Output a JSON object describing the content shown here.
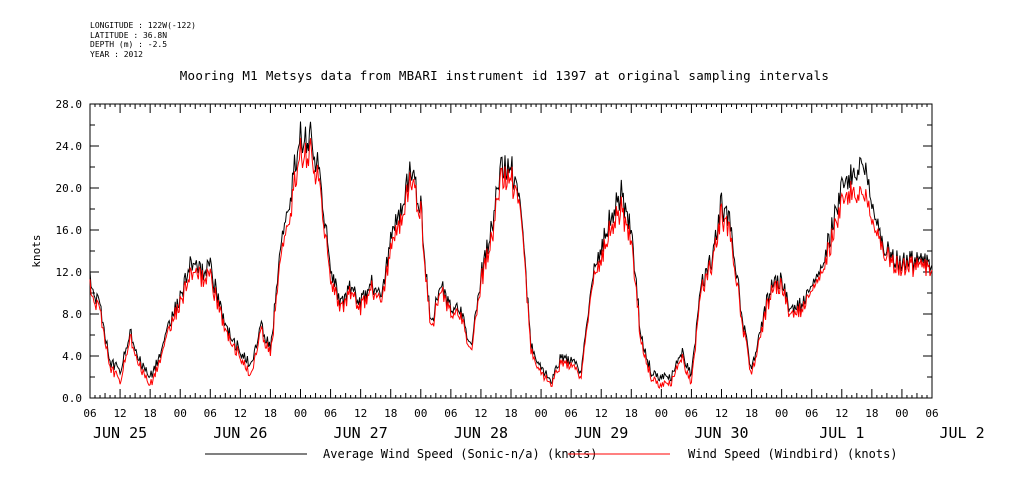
{
  "header": {
    "longitude": "LONGITUDE : 122W(-122)",
    "latitude": "LATITUDE : 36.8N",
    "depth": "DEPTH (m) : -2.5",
    "year": "YEAR : 2012",
    "title": "Mooring M1 Metsys data from MBARI instrument id 1397 at original sampling intervals"
  },
  "chart_data": {
    "type": "line",
    "title": "Mooring M1 Metsys data from MBARI instrument id 1397 at original sampling intervals",
    "ylabel": "knots",
    "xlabel": "",
    "ylim": [
      0,
      28
    ],
    "y_ticks": [
      "0.0",
      "4.0",
      "8.0",
      "12.0",
      "16.0",
      "20.0",
      "24.0",
      "28.0"
    ],
    "x_range_hours": [
      "2012-06-25 06:00",
      "2012-07-02 06:00"
    ],
    "hour_tick_labels": [
      "06",
      "12",
      "18",
      "00",
      "06",
      "12",
      "18",
      "00",
      "06",
      "12",
      "18",
      "00",
      "06",
      "12",
      "18",
      "00",
      "06",
      "12",
      "18",
      "00",
      "06",
      "12",
      "18",
      "00",
      "06",
      "12",
      "18",
      "00",
      "06"
    ],
    "day_labels": [
      "JUN 25",
      "JUN 26",
      "JUN 27",
      "JUN 28",
      "JUN 29",
      "JUN 30",
      "JUL  1",
      "JUL  2"
    ],
    "legend_position": "bottom",
    "series": [
      {
        "name": "Average Wind Speed (Sonic-n/a) (knots)",
        "color": "#000000",
        "x_hours_since_jun25_06": [
          0,
          2,
          4,
          6,
          8,
          10,
          12,
          14,
          16,
          18,
          20,
          22,
          24,
          26,
          28,
          30,
          32,
          34,
          36,
          38,
          40,
          42,
          44,
          46,
          48,
          50,
          52,
          54,
          56,
          58,
          60,
          62,
          64,
          66,
          68,
          70,
          72,
          74,
          76,
          78,
          80,
          82,
          84,
          86,
          88,
          90,
          92,
          94,
          96,
          98,
          100,
          102,
          104,
          106,
          108,
          110,
          112,
          114,
          116,
          118,
          120,
          122,
          124,
          126,
          128,
          130,
          132,
          134,
          136,
          138,
          140,
          142,
          144,
          146,
          148,
          150,
          152,
          154,
          156,
          158,
          160,
          162,
          164,
          166,
          168
        ],
        "values": [
          11.8,
          8.5,
          3.5,
          2.5,
          6.5,
          3.5,
          2.0,
          4.0,
          7.5,
          9.5,
          12.5,
          12.0,
          12.5,
          8.5,
          6.0,
          4.5,
          3.0,
          7.0,
          4.5,
          14.0,
          19.5,
          25.0,
          25.0,
          21.0,
          12.0,
          9.0,
          10.5,
          9.0,
          11.0,
          9.5,
          15.0,
          18.0,
          22.0,
          18.0,
          7.0,
          10.5,
          9.0,
          8.0,
          5.0,
          11.5,
          16.0,
          21.5,
          22.0,
          18.0,
          5.0,
          3.0,
          1.5,
          4.0,
          3.5,
          2.5,
          11.0,
          14.0,
          17.5,
          19.5,
          16.0,
          5.5,
          2.5,
          2.0,
          2.0,
          4.5,
          2.0,
          11.0,
          13.0,
          18.5,
          16.0,
          8.0,
          2.5,
          7.0,
          11.0,
          11.0,
          8.0,
          9.0,
          11.5,
          12.5,
          16.0,
          20.0,
          21.0,
          23.0,
          18.0,
          14.5,
          13.5,
          13.0,
          13.0,
          13.0,
          13.0
        ]
      },
      {
        "name": "Wind Speed (Windbird) (knots)",
        "color": "#ff0000",
        "x_hours_since_jun25_06": [
          0,
          2,
          4,
          6,
          8,
          10,
          12,
          14,
          16,
          18,
          20,
          22,
          24,
          26,
          28,
          30,
          32,
          34,
          36,
          38,
          40,
          42,
          44,
          46,
          48,
          50,
          52,
          54,
          56,
          58,
          60,
          62,
          64,
          66,
          68,
          70,
          72,
          74,
          76,
          78,
          80,
          82,
          84,
          86,
          88,
          90,
          92,
          94,
          96,
          98,
          100,
          102,
          104,
          106,
          108,
          110,
          112,
          114,
          116,
          118,
          120,
          122,
          124,
          126,
          128,
          130,
          132,
          134,
          136,
          138,
          140,
          142,
          144,
          146,
          148,
          150,
          152,
          154,
          156,
          158,
          160,
          162,
          164,
          166,
          168
        ],
        "values": [
          11.0,
          8.0,
          3.0,
          1.5,
          6.0,
          3.0,
          1.2,
          3.5,
          7.0,
          9.0,
          11.5,
          11.5,
          11.5,
          8.0,
          5.5,
          4.0,
          2.0,
          6.5,
          4.0,
          13.0,
          18.0,
          23.5,
          23.5,
          20.0,
          11.0,
          8.5,
          10.0,
          8.5,
          10.5,
          9.0,
          14.0,
          17.0,
          21.0,
          17.5,
          6.5,
          10.0,
          8.5,
          7.5,
          4.5,
          11.0,
          15.0,
          20.5,
          21.0,
          17.5,
          4.5,
          2.5,
          1.2,
          3.5,
          3.0,
          2.0,
          10.5,
          13.0,
          16.5,
          18.0,
          15.0,
          5.0,
          2.0,
          1.2,
          1.5,
          4.0,
          1.2,
          10.5,
          12.5,
          17.5,
          15.0,
          7.5,
          2.0,
          6.5,
          10.5,
          10.5,
          7.5,
          8.5,
          11.0,
          12.0,
          15.0,
          18.5,
          19.5,
          20.0,
          16.5,
          14.0,
          13.0,
          12.5,
          12.5,
          12.5,
          12.5
        ]
      }
    ]
  },
  "legend": {
    "black_label": "Average Wind Speed (Sonic-n/a) (knots)",
    "red_label": "Wind Speed (Windbird) (knots)"
  }
}
